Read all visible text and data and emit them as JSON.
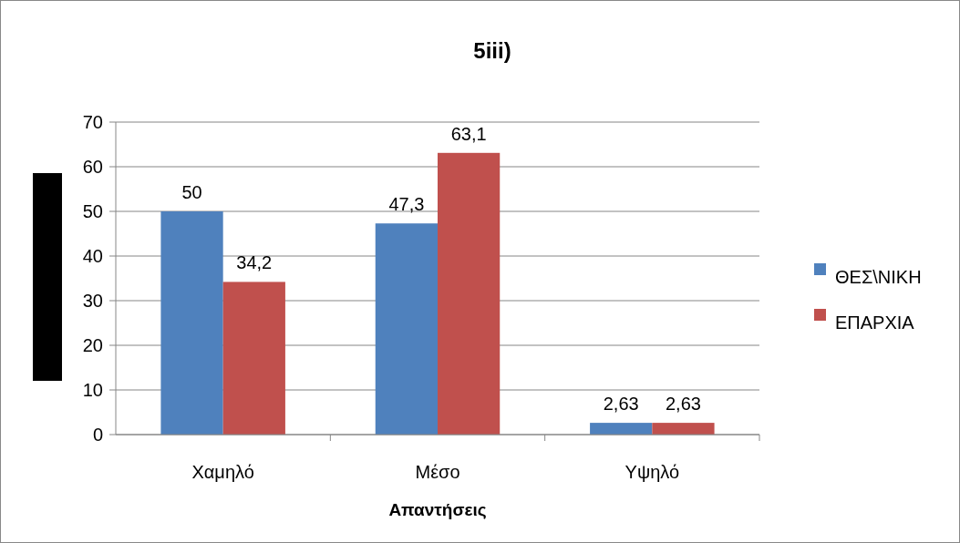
{
  "chart_data": {
    "type": "bar",
    "title": "5iii)",
    "xlabel": "Απαντήσεις",
    "categories": [
      "Χαμηλό",
      "Μέσο",
      "Υψηλό"
    ],
    "series": [
      {
        "name": "ΘΕΣ\\ΝΙΚΗ",
        "color": "#4f81bd",
        "values": [
          50,
          47.3,
          2.63
        ],
        "value_labels": [
          "50",
          "47,3",
          "2,63"
        ]
      },
      {
        "name": "ΕΠΑΡΧΙΑ",
        "color": "#c0504d",
        "values": [
          34.2,
          63.1,
          2.63
        ],
        "value_labels": [
          "34,2",
          "63,1",
          "2,63"
        ]
      }
    ],
    "ylim": [
      0,
      70
    ],
    "yticks": [
      0,
      10,
      20,
      30,
      40,
      50,
      60,
      70
    ],
    "grid": "y",
    "legend": "right"
  }
}
